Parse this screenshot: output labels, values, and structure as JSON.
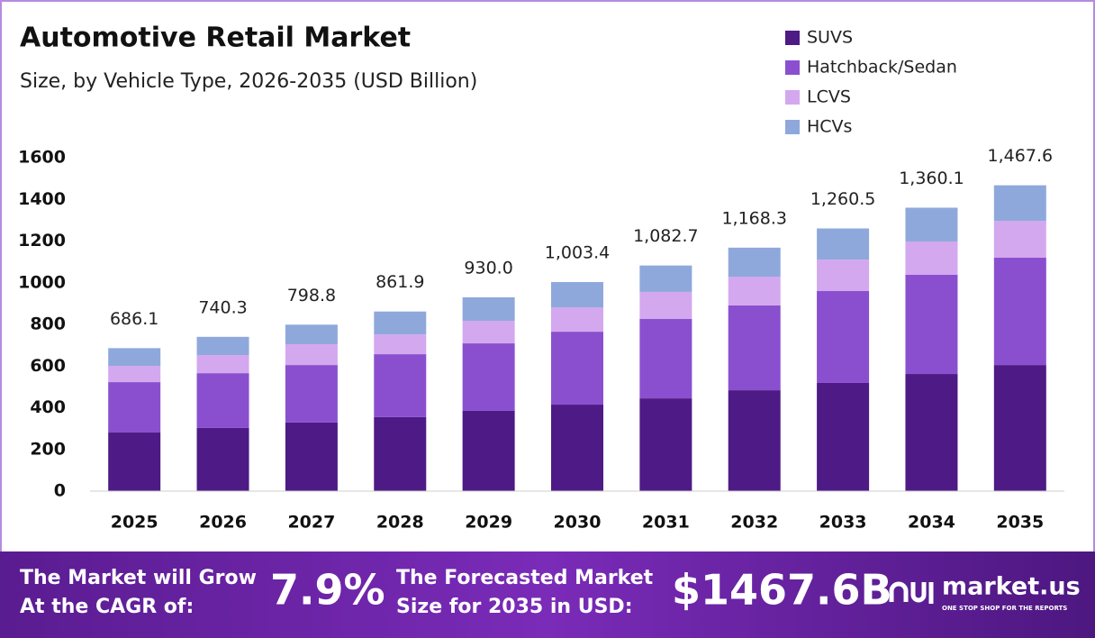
{
  "chart_data": {
    "type": "stacked-bar",
    "title": "Automotive Retail Market",
    "subtitle": "Size, by Vehicle Type, 2026-2035 (USD Billion)",
    "categories": [
      "2025",
      "2026",
      "2027",
      "2028",
      "2029",
      "2030",
      "2031",
      "2032",
      "2033",
      "2034",
      "2035"
    ],
    "series": [
      {
        "name": "SUVS",
        "color": "#4e1a85",
        "values": [
          281,
          303,
          329,
          355,
          385,
          415,
          445,
          484,
          519,
          562,
          605
        ]
      },
      {
        "name": "Hatchback/Sedan",
        "color": "#8a4fcf",
        "values": [
          242,
          263,
          276,
          302,
          324,
          350,
          381,
          407,
          441,
          476,
          515
        ]
      },
      {
        "name": "LCVS",
        "color": "#d3a8ee",
        "values": [
          78,
          87,
          100,
          95,
          108,
          117,
          130,
          138,
          151,
          160,
          177
        ]
      },
      {
        "name": "HCVs",
        "color": "#8fa8dc",
        "values": [
          85.1,
          87.3,
          93.8,
          109.9,
          113,
          121.4,
          126.7,
          139.3,
          149.5,
          162.1,
          170.6
        ]
      }
    ],
    "totals": {
      "values": [
        686.1,
        740.3,
        798.8,
        861.9,
        930.0,
        1003.4,
        1082.7,
        1168.3,
        1260.5,
        1360.1,
        1467.6
      ],
      "value_labels": [
        "686.1",
        "740.3",
        "798.8",
        "861.9",
        "930.0",
        "1,003.4",
        "1,082.7",
        "1,168.3",
        "1,260.5",
        "1,360.1",
        "1,467.6"
      ]
    },
    "ylim": [
      0,
      1600
    ],
    "yticks": [
      0,
      200,
      400,
      600,
      800,
      1000,
      1200,
      1400,
      1600
    ],
    "grid": false,
    "legend": "top-right"
  },
  "footer": {
    "cagr_text": [
      "The Market will Grow",
      "At the CAGR of:"
    ],
    "cagr_value": "7.9%",
    "forecast_text": [
      "The Forecasted Market",
      "Size for 2035 in USD:"
    ],
    "forecast_value": "$1467.6B",
    "logo": "market.us",
    "tagline": "ONE STOP SHOP FOR THE REPORTS"
  }
}
